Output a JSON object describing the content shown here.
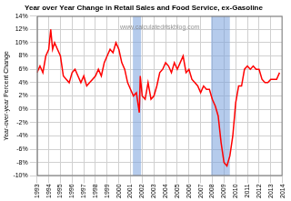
{
  "chart_data": {
    "type": "line",
    "title": "Year over Year Change in Retail Sales and Food Service, ex-Gasoline",
    "y_label": "Year-over-year Percent Change",
    "annotations": [
      "www.calculatedriskblog.com"
    ],
    "color": "#ff0000",
    "grid": true,
    "x": [
      1993.0,
      1993.25,
      1993.5,
      1993.75,
      1994.0,
      1994.17,
      1994.33,
      1994.5,
      1994.75,
      1995.0,
      1995.25,
      1995.5,
      1995.75,
      1996.0,
      1996.25,
      1996.5,
      1996.75,
      1997.0,
      1997.25,
      1997.5,
      1997.75,
      1998.0,
      1998.25,
      1998.5,
      1998.75,
      1999.0,
      1999.25,
      1999.5,
      1999.75,
      2000.0,
      2000.25,
      2000.5,
      2000.75,
      2001.0,
      2001.25,
      2001.5,
      2001.75,
      2001.83,
      2002.0,
      2002.25,
      2002.5,
      2002.75,
      2003.0,
      2003.25,
      2003.5,
      2003.75,
      2004.0,
      2004.25,
      2004.5,
      2004.75,
      2005.0,
      2005.25,
      2005.5,
      2005.75,
      2006.0,
      2006.25,
      2006.5,
      2006.75,
      2007.0,
      2007.25,
      2007.5,
      2007.75,
      2008.0,
      2008.25,
      2008.5,
      2008.75,
      2009.0,
      2009.25,
      2009.5,
      2009.75,
      2010.0,
      2010.25,
      2010.5,
      2010.75,
      2011.0,
      2011.25,
      2011.5,
      2011.75,
      2012.0,
      2012.25,
      2012.5,
      2012.75,
      2013.0,
      2013.25,
      2013.5,
      2013.75
    ],
    "values": [
      5.5,
      6.5,
      5.5,
      8,
      9,
      12,
      9,
      10,
      9,
      8,
      5,
      4.5,
      4,
      5.5,
      6,
      5,
      4,
      5,
      3.5,
      4,
      4.5,
      5,
      6,
      5,
      7,
      8,
      9,
      8.5,
      10,
      9,
      7,
      6,
      4,
      3,
      2,
      2.5,
      -0.5,
      5,
      2,
      1.5,
      4,
      1.5,
      2,
      3.5,
      5.5,
      6,
      7,
      6.5,
      5.5,
      7,
      6,
      7,
      8,
      5.5,
      6,
      4.5,
      4,
      3.5,
      2.5,
      3.5,
      3,
      3,
      1.5,
      0.5,
      -1,
      -5,
      -8,
      -8.5,
      -7,
      -4,
      1,
      3.5,
      3.5,
      6,
      6.5,
      6,
      6.5,
      6,
      6,
      4.5,
      4,
      4,
      4.5,
      4.5,
      4.5,
      5.5
    ],
    "recessions": [
      [
        2001.2,
        2001.9
      ],
      [
        2007.9,
        2009.5
      ]
    ],
    "xlim": [
      1993,
      2014
    ],
    "xticks": [
      1993,
      1994,
      1995,
      1996,
      1997,
      1998,
      1999,
      2000,
      2001,
      2002,
      2003,
      2004,
      2005,
      2006,
      2007,
      2008,
      2009,
      2010,
      2011,
      2012,
      2013,
      2014
    ],
    "ylim": [
      -10,
      14
    ],
    "yticks": [
      {
        "value": -10,
        "label": "-10%"
      },
      {
        "value": -8,
        "label": "-8%"
      },
      {
        "value": -6,
        "label": "-6%"
      },
      {
        "value": -4,
        "label": "-4%"
      },
      {
        "value": -2,
        "label": "-2%"
      },
      {
        "value": 0,
        "label": "0%"
      },
      {
        "value": 2,
        "label": "2%"
      },
      {
        "value": 4,
        "label": "4%"
      },
      {
        "value": 6,
        "label": "6%"
      },
      {
        "value": 8,
        "label": "8%"
      },
      {
        "value": 10,
        "label": "10%"
      },
      {
        "value": 12,
        "label": "12%"
      },
      {
        "value": 14,
        "label": "14%"
      }
    ]
  }
}
